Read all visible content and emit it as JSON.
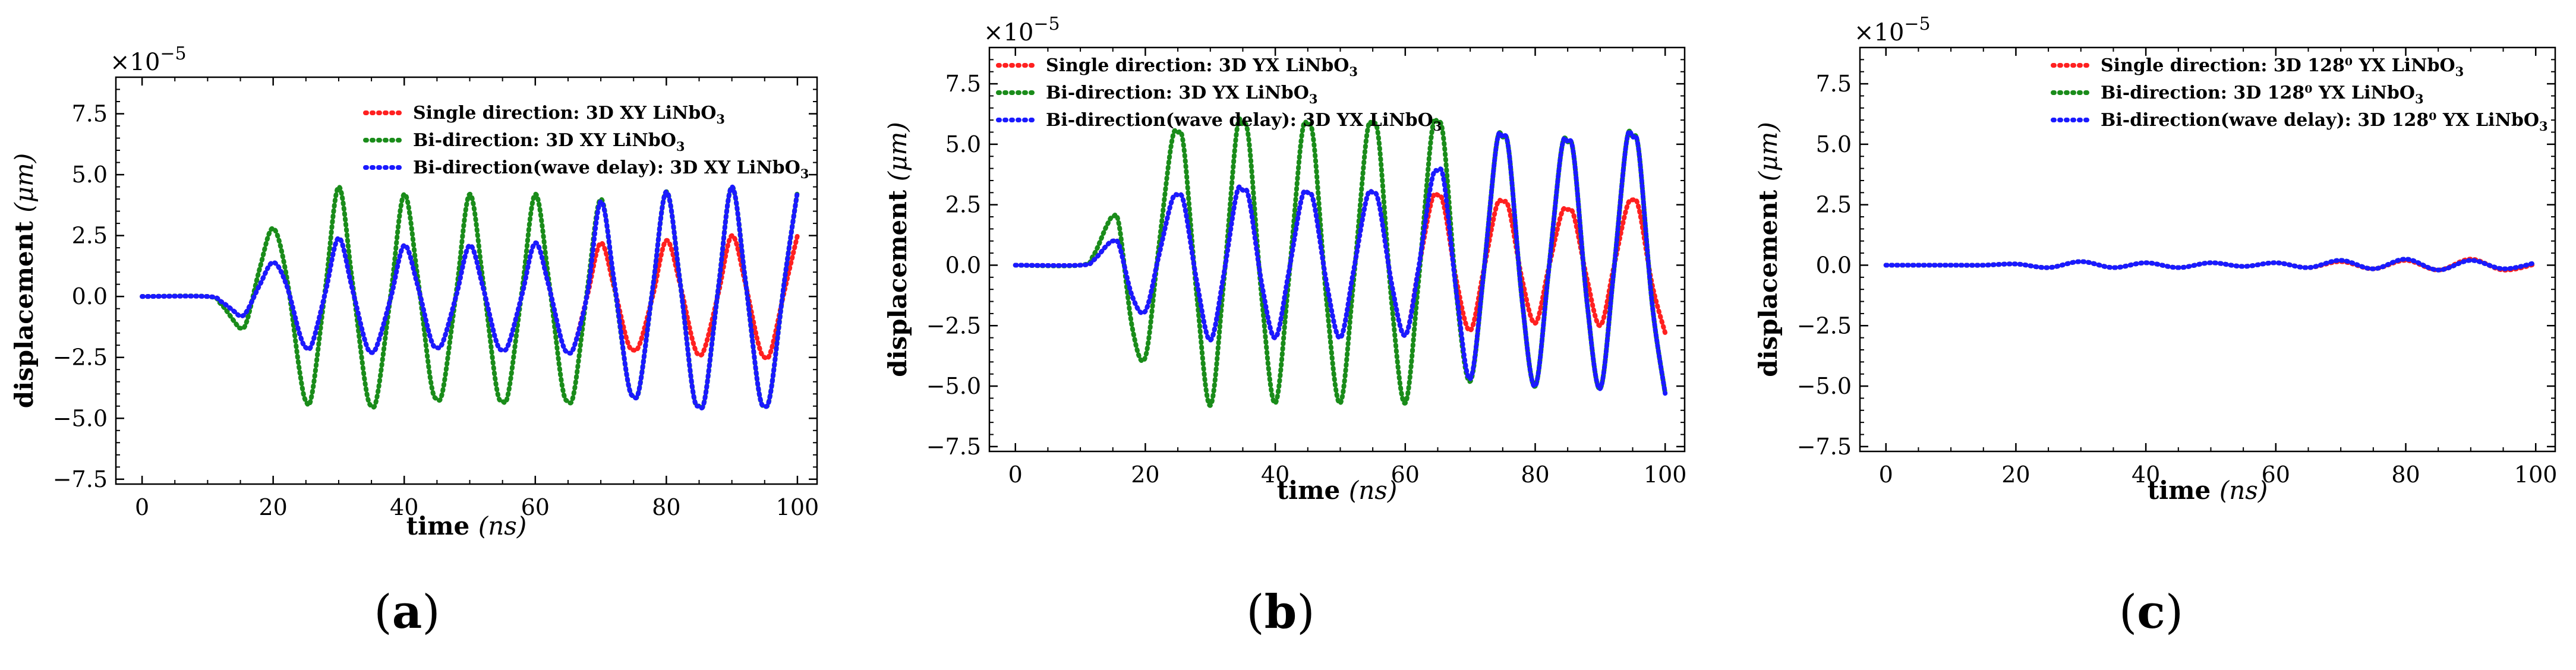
{
  "chart_data": [
    {
      "panel": "a",
      "type": "line",
      "xlabel": "time",
      "xlabel_unit": "ns",
      "ylabel": "displacement",
      "ylabel_unit": "μm",
      "scale_label": "×10",
      "scale_exponent": "−5",
      "xlim": [
        -4,
        103
      ],
      "ylim": [
        -7.7,
        9.0
      ],
      "xticks": [
        0,
        20,
        40,
        60,
        80,
        100
      ],
      "xtick_labels": [
        "0",
        "20",
        "40",
        "60",
        "80",
        "100"
      ],
      "yticks": [
        -7.5,
        -5.0,
        -2.5,
        0.0,
        2.5,
        5.0,
        7.5
      ],
      "ytick_labels": [
        "−7.5",
        "−5.0",
        "−2.5",
        "0.0",
        "2.5",
        "5.0",
        "7.5"
      ],
      "legend_position": "upper-right",
      "series": [
        {
          "name": "Single direction: 3D XY LiNbO",
          "sub": "3",
          "color": "#ff2020",
          "x": [
            0,
            10,
            12,
            14,
            15,
            16,
            18,
            20,
            22,
            24,
            25,
            26,
            28,
            30,
            32,
            34,
            35,
            36,
            38,
            40,
            42,
            44,
            45,
            46,
            48,
            50,
            52,
            54,
            55,
            56,
            58,
            60,
            62,
            64,
            65,
            66,
            68,
            70,
            72,
            74,
            75,
            76,
            78,
            80,
            82,
            84,
            85,
            86,
            88,
            90,
            92,
            94,
            95,
            96,
            98,
            100
          ],
          "values": [
            0,
            0,
            -0.2,
            -0.6,
            -0.8,
            -0.6,
            0.5,
            1.4,
            0.5,
            -1.5,
            -2.1,
            -1.9,
            0.2,
            2.4,
            0.4,
            -1.8,
            -2.3,
            -1.9,
            0.0,
            2.1,
            0.5,
            -1.7,
            -2.1,
            -1.8,
            0.1,
            2.1,
            0.4,
            -1.8,
            -2.2,
            -1.9,
            0.1,
            2.2,
            0.5,
            -1.8,
            -2.3,
            -2.0,
            0.1,
            2.2,
            0.4,
            -1.8,
            -2.2,
            -1.9,
            0.1,
            2.3,
            0.6,
            -1.8,
            -2.4,
            -2.0,
            0.2,
            2.5,
            0.6,
            -1.9,
            -2.5,
            -2.2,
            0.2,
            2.5
          ]
        },
        {
          "name": "Bi-direction: 3D XY LiNbO",
          "sub": "3",
          "color": "#1a8c1a",
          "x": [
            0,
            10,
            12,
            14,
            15,
            16,
            18,
            20,
            22,
            24,
            25,
            26,
            28,
            30,
            32,
            34,
            35,
            36,
            38,
            40,
            42,
            44,
            45,
            46,
            48,
            50,
            52,
            54,
            55,
            56,
            58,
            60,
            62,
            64,
            65,
            66,
            68,
            70,
            72,
            74,
            75,
            76,
            78,
            80,
            82,
            84,
            85,
            86,
            88,
            90,
            92,
            94,
            95,
            96,
            98,
            100
          ],
          "values": [
            0,
            0,
            -0.3,
            -1.0,
            -1.3,
            -1.0,
            1.2,
            2.8,
            0.9,
            -3.0,
            -4.3,
            -3.9,
            0.4,
            4.5,
            0.8,
            -3.5,
            -4.5,
            -3.9,
            0.2,
            4.2,
            0.9,
            -3.4,
            -4.2,
            -3.7,
            0.3,
            4.2,
            0.7,
            -3.6,
            -4.3,
            -3.8,
            0.3,
            4.2,
            0.8,
            -3.5,
            -4.3,
            -3.8,
            0.4,
            4.0,
            0.6,
            -3.3,
            -4.1,
            -3.6,
            0.5,
            4.3,
            0.8,
            -3.8,
            -4.5,
            -4.0,
            0.5,
            4.5,
            0.8,
            -3.7,
            -4.5,
            -3.8,
            0.6,
            4.3
          ]
        },
        {
          "name": "Bi-direction(wave delay): 3D XY LiNbO",
          "sub": "3",
          "color": "#1a1aff",
          "x": [
            0,
            10,
            12,
            14,
            15,
            16,
            18,
            20,
            22,
            24,
            25,
            26,
            28,
            30,
            32,
            34,
            35,
            36,
            38,
            40,
            42,
            44,
            45,
            46,
            48,
            50,
            52,
            54,
            55,
            56,
            58,
            60,
            62,
            64,
            65,
            66,
            68,
            70,
            72,
            74,
            75,
            76,
            78,
            80,
            82,
            84,
            85,
            86,
            88,
            90,
            92,
            94,
            95,
            96,
            98,
            100
          ],
          "values": [
            0,
            0,
            -0.2,
            -0.6,
            -0.8,
            -0.6,
            0.5,
            1.4,
            0.5,
            -1.5,
            -2.1,
            -1.9,
            0.2,
            2.4,
            0.4,
            -1.8,
            -2.3,
            -1.9,
            0.0,
            2.1,
            0.5,
            -1.7,
            -2.1,
            -1.8,
            0.1,
            2.1,
            0.4,
            -1.8,
            -2.2,
            -1.9,
            0.1,
            2.2,
            0.5,
            -1.8,
            -2.3,
            -2.0,
            0.2,
            3.9,
            0.7,
            -3.3,
            -4.1,
            -3.6,
            0.5,
            4.3,
            0.8,
            -3.8,
            -4.5,
            -4.0,
            0.5,
            4.5,
            0.8,
            -3.7,
            -4.5,
            -3.8,
            0.6,
            4.3
          ]
        }
      ]
    },
    {
      "panel": "b",
      "type": "line",
      "xlabel": "time",
      "xlabel_unit": "ns",
      "ylabel": "displacement",
      "ylabel_unit": "μm",
      "scale_label": "×10",
      "scale_exponent": "−5",
      "xlim": [
        -4,
        103
      ],
      "ylim": [
        -7.7,
        9.0
      ],
      "xticks": [
        0,
        20,
        40,
        60,
        80,
        100
      ],
      "xtick_labels": [
        "0",
        "20",
        "40",
        "60",
        "80",
        "100"
      ],
      "yticks": [
        -7.5,
        -5.0,
        -2.5,
        0.0,
        2.5,
        5.0,
        7.5
      ],
      "ytick_labels": [
        "−7.5",
        "−5.0",
        "−2.5",
        "0.0",
        "2.5",
        "5.0",
        "7.5"
      ],
      "legend_position": "upper-left",
      "series": [
        {
          "name": "Single direction: 3D YX LiNbO",
          "sub": "3",
          "color": "#ff2020",
          "x": [
            0,
            10,
            12,
            14,
            15,
            16,
            18,
            20,
            22,
            24,
            25,
            26,
            28,
            30,
            32,
            34,
            35,
            36,
            38,
            40,
            42,
            44,
            45,
            46,
            48,
            50,
            52,
            54,
            55,
            56,
            58,
            60,
            62,
            64,
            65,
            66,
            68,
            70,
            72,
            74,
            75,
            76,
            78,
            80,
            82,
            84,
            85,
            86,
            88,
            90,
            92,
            94,
            95,
            96,
            98,
            100
          ],
          "values": [
            0,
            0,
            0.2,
            0.8,
            1.0,
            0.8,
            -1.3,
            -1.9,
            0.3,
            2.6,
            2.9,
            2.5,
            -0.8,
            -3.1,
            -0.5,
            2.9,
            3.1,
            2.7,
            -0.9,
            -3.0,
            -0.4,
            2.7,
            3.0,
            2.5,
            -0.9,
            -3.0,
            -0.3,
            2.7,
            3.0,
            2.5,
            -0.9,
            -2.9,
            -0.2,
            2.6,
            2.9,
            2.4,
            -0.8,
            -2.7,
            -0.3,
            2.4,
            2.6,
            2.3,
            -0.6,
            -2.4,
            -0.2,
            2.1,
            2.3,
            2.0,
            -0.6,
            -2.5,
            -0.2,
            2.3,
            2.7,
            2.3,
            -0.8,
            -2.8
          ]
        },
        {
          "name": "Bi-direction: 3D YX LiNbO",
          "sub": "3",
          "color": "#1a8c1a",
          "x": [
            0,
            10,
            12,
            14,
            15,
            16,
            18,
            20,
            22,
            24,
            25,
            26,
            28,
            30,
            32,
            34,
            35,
            36,
            38,
            40,
            42,
            44,
            45,
            46,
            48,
            50,
            52,
            54,
            55,
            56,
            58,
            60,
            62,
            64,
            65,
            66,
            68,
            70,
            72,
            74,
            75,
            76,
            78,
            80,
            82,
            84,
            85,
            86,
            88,
            90,
            92,
            94,
            95,
            96,
            98,
            100
          ],
          "values": [
            0,
            0,
            0.4,
            1.6,
            2.0,
            1.6,
            -2.6,
            -3.8,
            0.6,
            5.0,
            5.5,
            4.7,
            -1.5,
            -5.8,
            -0.9,
            5.4,
            5.8,
            5.0,
            -1.6,
            -5.7,
            -0.8,
            5.2,
            5.8,
            4.9,
            -1.8,
            -5.7,
            -0.8,
            5.2,
            5.8,
            5.0,
            -1.8,
            -5.7,
            -0.8,
            5.3,
            5.9,
            5.0,
            -1.5,
            -4.8,
            -0.5,
            4.9,
            5.3,
            4.6,
            -1.5,
            -5.0,
            -0.4,
            4.7,
            5.1,
            4.4,
            -1.6,
            -5.1,
            -0.5,
            5.0,
            5.3,
            4.6,
            -1.6,
            -5.3
          ]
        },
        {
          "name": "Bi-direction(wave delay): 3D YX LiNbO",
          "sub": "3",
          "color": "#1a1aff",
          "x": [
            0,
            10,
            12,
            14,
            15,
            16,
            18,
            20,
            22,
            24,
            25,
            26,
            28,
            30,
            32,
            34,
            35,
            36,
            38,
            40,
            42,
            44,
            45,
            46,
            48,
            50,
            52,
            54,
            55,
            56,
            58,
            60,
            62,
            64,
            65,
            66,
            68,
            70,
            72,
            74,
            75,
            76,
            78,
            80,
            82,
            84,
            85,
            86,
            88,
            90,
            92,
            94,
            95,
            96,
            98,
            100
          ],
          "values": [
            0,
            0,
            0.2,
            0.8,
            1.0,
            0.8,
            -1.3,
            -1.9,
            0.3,
            2.6,
            2.9,
            2.5,
            -0.8,
            -3.1,
            -0.5,
            2.9,
            3.1,
            2.7,
            -0.9,
            -3.0,
            -0.4,
            2.7,
            3.0,
            2.5,
            -0.9,
            -3.0,
            -0.3,
            2.7,
            3.0,
            2.5,
            -0.9,
            -2.9,
            -0.2,
            3.4,
            3.9,
            3.4,
            -1.4,
            -4.7,
            -0.5,
            4.9,
            5.3,
            4.6,
            -1.5,
            -5.0,
            -0.4,
            4.7,
            5.1,
            4.4,
            -1.6,
            -5.1,
            -0.5,
            5.0,
            5.3,
            4.6,
            -1.6,
            -5.3
          ]
        }
      ]
    },
    {
      "panel": "c",
      "type": "line",
      "xlabel": "time",
      "xlabel_unit": "ns",
      "ylabel": "displacement",
      "ylabel_unit": "μm",
      "scale_label": "×10",
      "scale_exponent": "−5",
      "xlim": [
        -4,
        103
      ],
      "ylim": [
        -7.7,
        9.0
      ],
      "xticks": [
        0,
        20,
        40,
        60,
        80,
        100
      ],
      "xtick_labels": [
        "0",
        "20",
        "40",
        "60",
        "80",
        "100"
      ],
      "yticks": [
        -7.5,
        -5.0,
        -2.5,
        0.0,
        2.5,
        5.0,
        7.5
      ],
      "ytick_labels": [
        "−7.5",
        "−5.0",
        "−2.5",
        "0.0",
        "2.5",
        "5.0",
        "7.5"
      ],
      "legend_position": "upper-center",
      "series": [
        {
          "name": "Single direction: 3D 128⁰ YX LiNbO",
          "sub": "3",
          "color": "#ff2020",
          "x": [
            0,
            10,
            15,
            20,
            25,
            30,
            35,
            40,
            45,
            50,
            55,
            60,
            65,
            70,
            75,
            80,
            85,
            90,
            95,
            100
          ],
          "values": [
            0,
            0,
            0,
            0.05,
            -0.1,
            0.15,
            -0.1,
            0.1,
            -0.1,
            0.1,
            -0.05,
            0.1,
            -0.1,
            0.15,
            -0.15,
            0.2,
            -0.2,
            0.25,
            -0.2,
            0.05
          ]
        },
        {
          "name": "Bi-direction: 3D 128⁰ YX LiNbO",
          "sub": "3",
          "color": "#1a8c1a",
          "x": [
            0,
            10,
            15,
            20,
            25,
            30,
            35,
            40,
            45,
            50,
            55,
            60,
            65,
            70,
            75,
            80,
            85,
            90,
            95,
            100
          ],
          "values": [
            0,
            0,
            0,
            0.05,
            -0.1,
            0.15,
            -0.1,
            0.1,
            -0.1,
            0.1,
            -0.05,
            0.1,
            -0.1,
            0.2,
            -0.15,
            0.25,
            -0.2,
            0.2,
            -0.15,
            0.1
          ]
        },
        {
          "name": "Bi-direction(wave delay): 3D 128⁰ YX LiNbO",
          "sub": "3",
          "color": "#1a1aff",
          "x": [
            0,
            10,
            15,
            20,
            25,
            30,
            35,
            40,
            45,
            50,
            55,
            60,
            65,
            70,
            75,
            80,
            85,
            90,
            95,
            100
          ],
          "values": [
            0,
            0,
            0,
            0.05,
            -0.1,
            0.15,
            -0.1,
            0.1,
            -0.1,
            0.1,
            -0.05,
            0.1,
            -0.1,
            0.2,
            -0.15,
            0.25,
            -0.2,
            0.2,
            -0.15,
            0.1
          ]
        }
      ]
    }
  ],
  "panel_labels": [
    "a",
    "b",
    "c"
  ]
}
